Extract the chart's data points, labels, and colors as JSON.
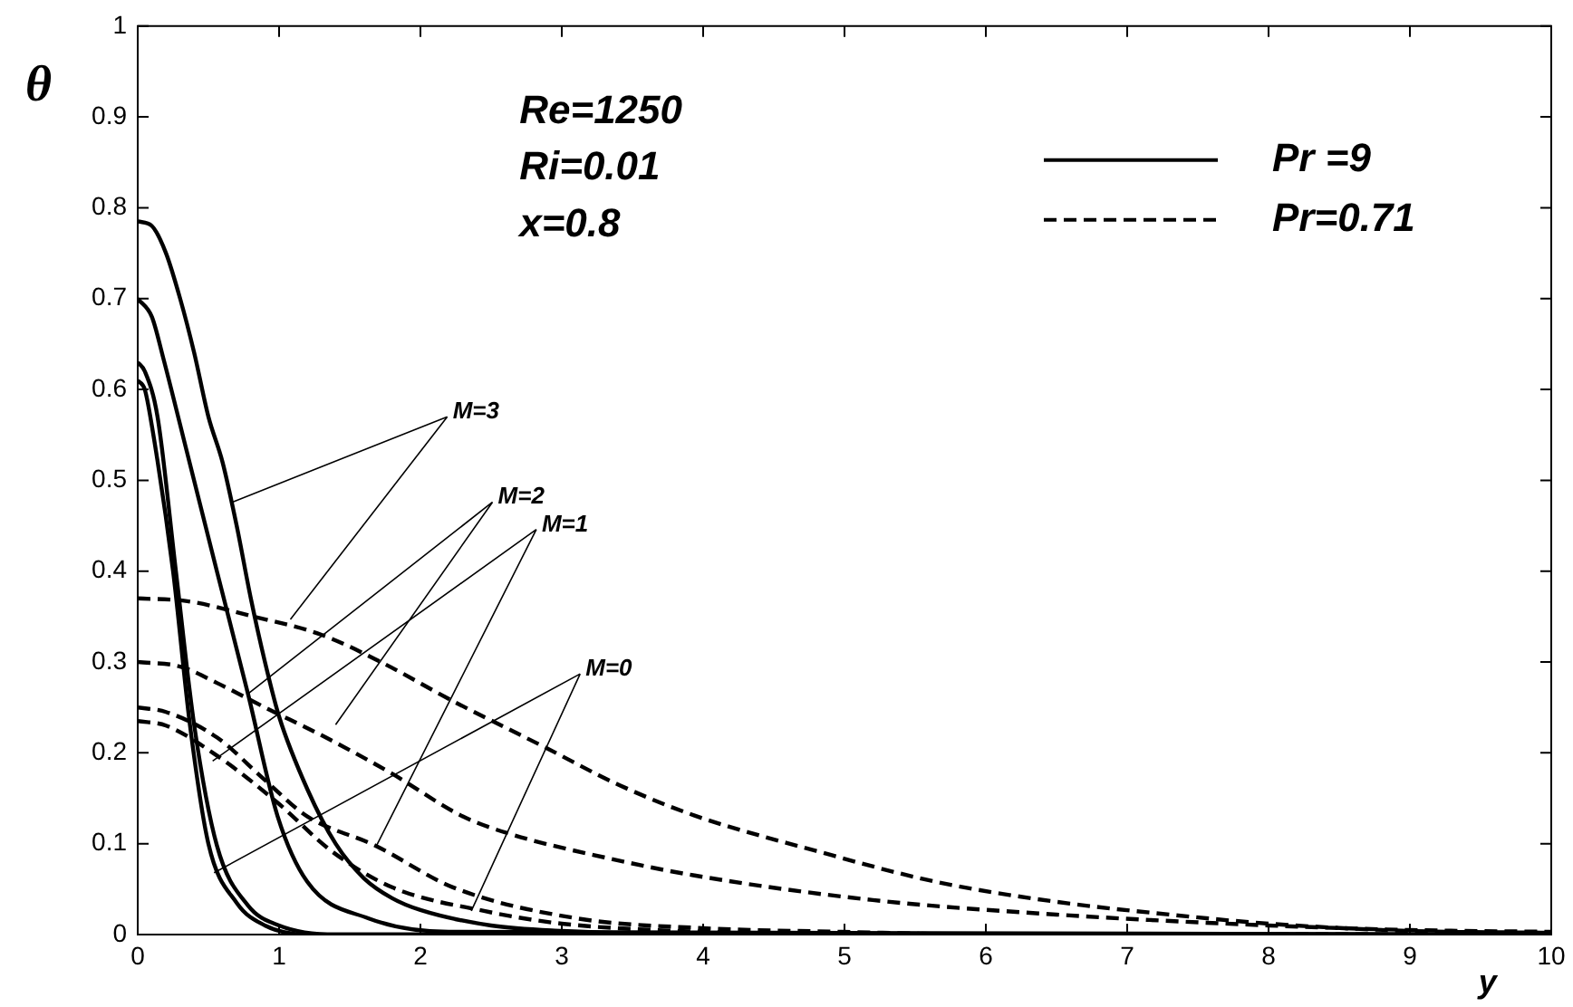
{
  "chart_data": {
    "type": "line",
    "xlabel": "y",
    "ylabel": "θ",
    "xlim": [
      0,
      10
    ],
    "xticks": [
      0,
      1,
      2,
      3,
      4,
      5,
      6,
      7,
      8,
      9,
      10
    ],
    "ylim": [
      0,
      1
    ],
    "yticks": [
      0,
      0.1,
      0.2,
      0.3,
      0.4,
      0.5,
      0.6,
      0.7,
      0.8,
      0.9,
      1
    ],
    "grid": false,
    "legend": "top right",
    "marker": "none",
    "annotations": [
      "Re=1250",
      "Ri=0.01",
      "x=0.8",
      {
        "text": "M=3",
        "x": 0.67,
        "y": 0.476
      },
      {
        "text": "M=2",
        "x": 0.78,
        "y": 0.265
      },
      {
        "text": "M=1",
        "x": 0.53,
        "y": 0.191
      },
      {
        "text": "M=0",
        "x": 0.54,
        "y": 0.068
      }
    ],
    "series": [
      {
        "name": "Pr =9",
        "color": "#000000",
        "line_style": "solid",
        "x": [
          0,
          0.1,
          0.2,
          0.3,
          0.4,
          0.5,
          0.6,
          0.7,
          0.8,
          0.9,
          1.0,
          1.2,
          1.4,
          1.6,
          1.8,
          2.0,
          2.5,
          3,
          4,
          10
        ],
        "values": [
          0.785,
          0.78,
          0.75,
          0.7,
          0.64,
          0.57,
          0.52,
          0.45,
          0.37,
          0.3,
          0.24,
          0.16,
          0.1,
          0.062,
          0.04,
          0.027,
          0.01,
          0.004,
          0,
          0
        ]
      },
      {
        "color": "#000000",
        "line_style": "solid",
        "x": [
          0,
          0.1,
          0.18,
          0.35,
          0.56,
          0.78,
          0.99,
          1.2,
          1.63,
          2.2,
          10
        ],
        "values": [
          0.7,
          0.68,
          0.635,
          0.53,
          0.4,
          0.265,
          0.13,
          0.058,
          0.018,
          0.003,
          0
        ]
      },
      {
        "color": "#000000",
        "line_style": "solid",
        "x": [
          0,
          0.05,
          0.14,
          0.27,
          0.4,
          0.56,
          0.78,
          1.0,
          1.4,
          10
        ],
        "values": [
          0.63,
          0.62,
          0.57,
          0.4,
          0.23,
          0.098,
          0.032,
          0.01,
          0,
          0
        ]
      },
      {
        "color": "#000000",
        "line_style": "solid",
        "x": [
          0,
          0.05,
          0.1,
          0.25,
          0.37,
          0.5,
          0.7,
          0.9,
          1.2,
          10
        ],
        "values": [
          0.61,
          0.6,
          0.56,
          0.4,
          0.23,
          0.1,
          0.035,
          0.01,
          0,
          0
        ]
      },
      {
        "name": "Pr=0.71",
        "color": "#000000",
        "line_style": "dashed",
        "x": [
          0,
          0.35,
          0.82,
          1.3,
          1.72,
          2.23,
          2.87,
          3.4,
          3.94,
          4.8,
          5.65,
          6.5,
          7.3,
          8.0,
          9.0,
          10
        ],
        "values": [
          0.37,
          0.367,
          0.35,
          0.33,
          0.3,
          0.257,
          0.207,
          0.165,
          0.131,
          0.092,
          0.058,
          0.036,
          0.022,
          0.012,
          0.004,
          0.002
        ]
      },
      {
        "color": "#000000",
        "line_style": "dashed",
        "x": [
          0,
          0.3,
          0.56,
          0.9,
          1.33,
          1.8,
          2.3,
          2.65,
          3.3,
          3.94,
          5.2,
          6.5,
          8,
          9,
          10
        ],
        "values": [
          0.3,
          0.295,
          0.277,
          0.25,
          0.217,
          0.177,
          0.13,
          0.11,
          0.085,
          0.065,
          0.038,
          0.022,
          0.01,
          0.005,
          0.003
        ]
      },
      {
        "color": "#000000",
        "line_style": "dashed",
        "x": [
          0,
          0.2,
          0.56,
          0.9,
          1.2,
          1.68,
          2.23,
          3.1,
          4,
          5,
          6,
          10
        ],
        "values": [
          0.25,
          0.245,
          0.217,
          0.17,
          0.13,
          0.098,
          0.052,
          0.018,
          0.007,
          0.003,
          0,
          0
        ]
      },
      {
        "color": "#000000",
        "line_style": "dashed",
        "x": [
          0,
          0.2,
          0.56,
          0.99,
          1.37,
          1.8,
          2.45,
          3,
          4,
          5,
          10
        ],
        "values": [
          0.235,
          0.23,
          0.197,
          0.145,
          0.092,
          0.052,
          0.026,
          0.012,
          0.003,
          0,
          0
        ]
      }
    ]
  }
}
